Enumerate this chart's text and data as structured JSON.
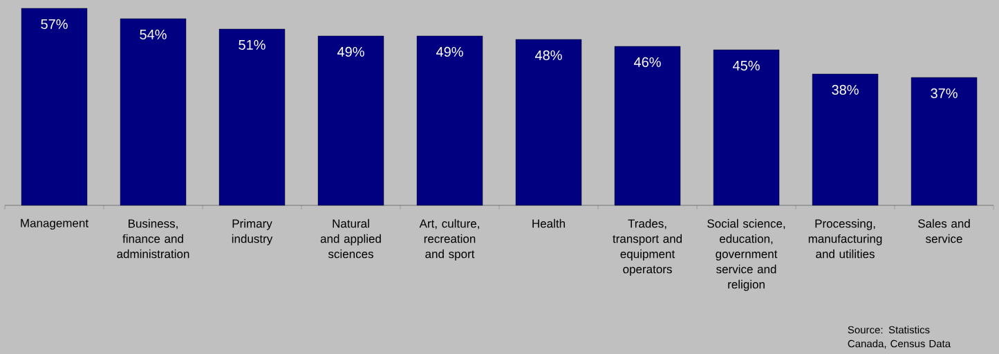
{
  "chart_data": {
    "type": "bar",
    "categories": [
      "Management",
      "Business, finance and administration",
      "Primary industry",
      "Natural and applied sciences",
      "Art, culture, recreation and sport",
      "Health",
      "Trades, transport and equipment operators",
      "Social science, education, government service and religion",
      "Processing, manufacturing and utilities",
      "Sales and service"
    ],
    "values": [
      57,
      54,
      51,
      49,
      49,
      48,
      46,
      45,
      38,
      37
    ],
    "value_labels": [
      "57%",
      "54%",
      "51%",
      "49%",
      "49%",
      "48%",
      "46%",
      "45%",
      "38%",
      "37%"
    ],
    "color": "#000080",
    "annotations": [
      "Source: Statistics Canada, Census Data"
    ]
  }
}
